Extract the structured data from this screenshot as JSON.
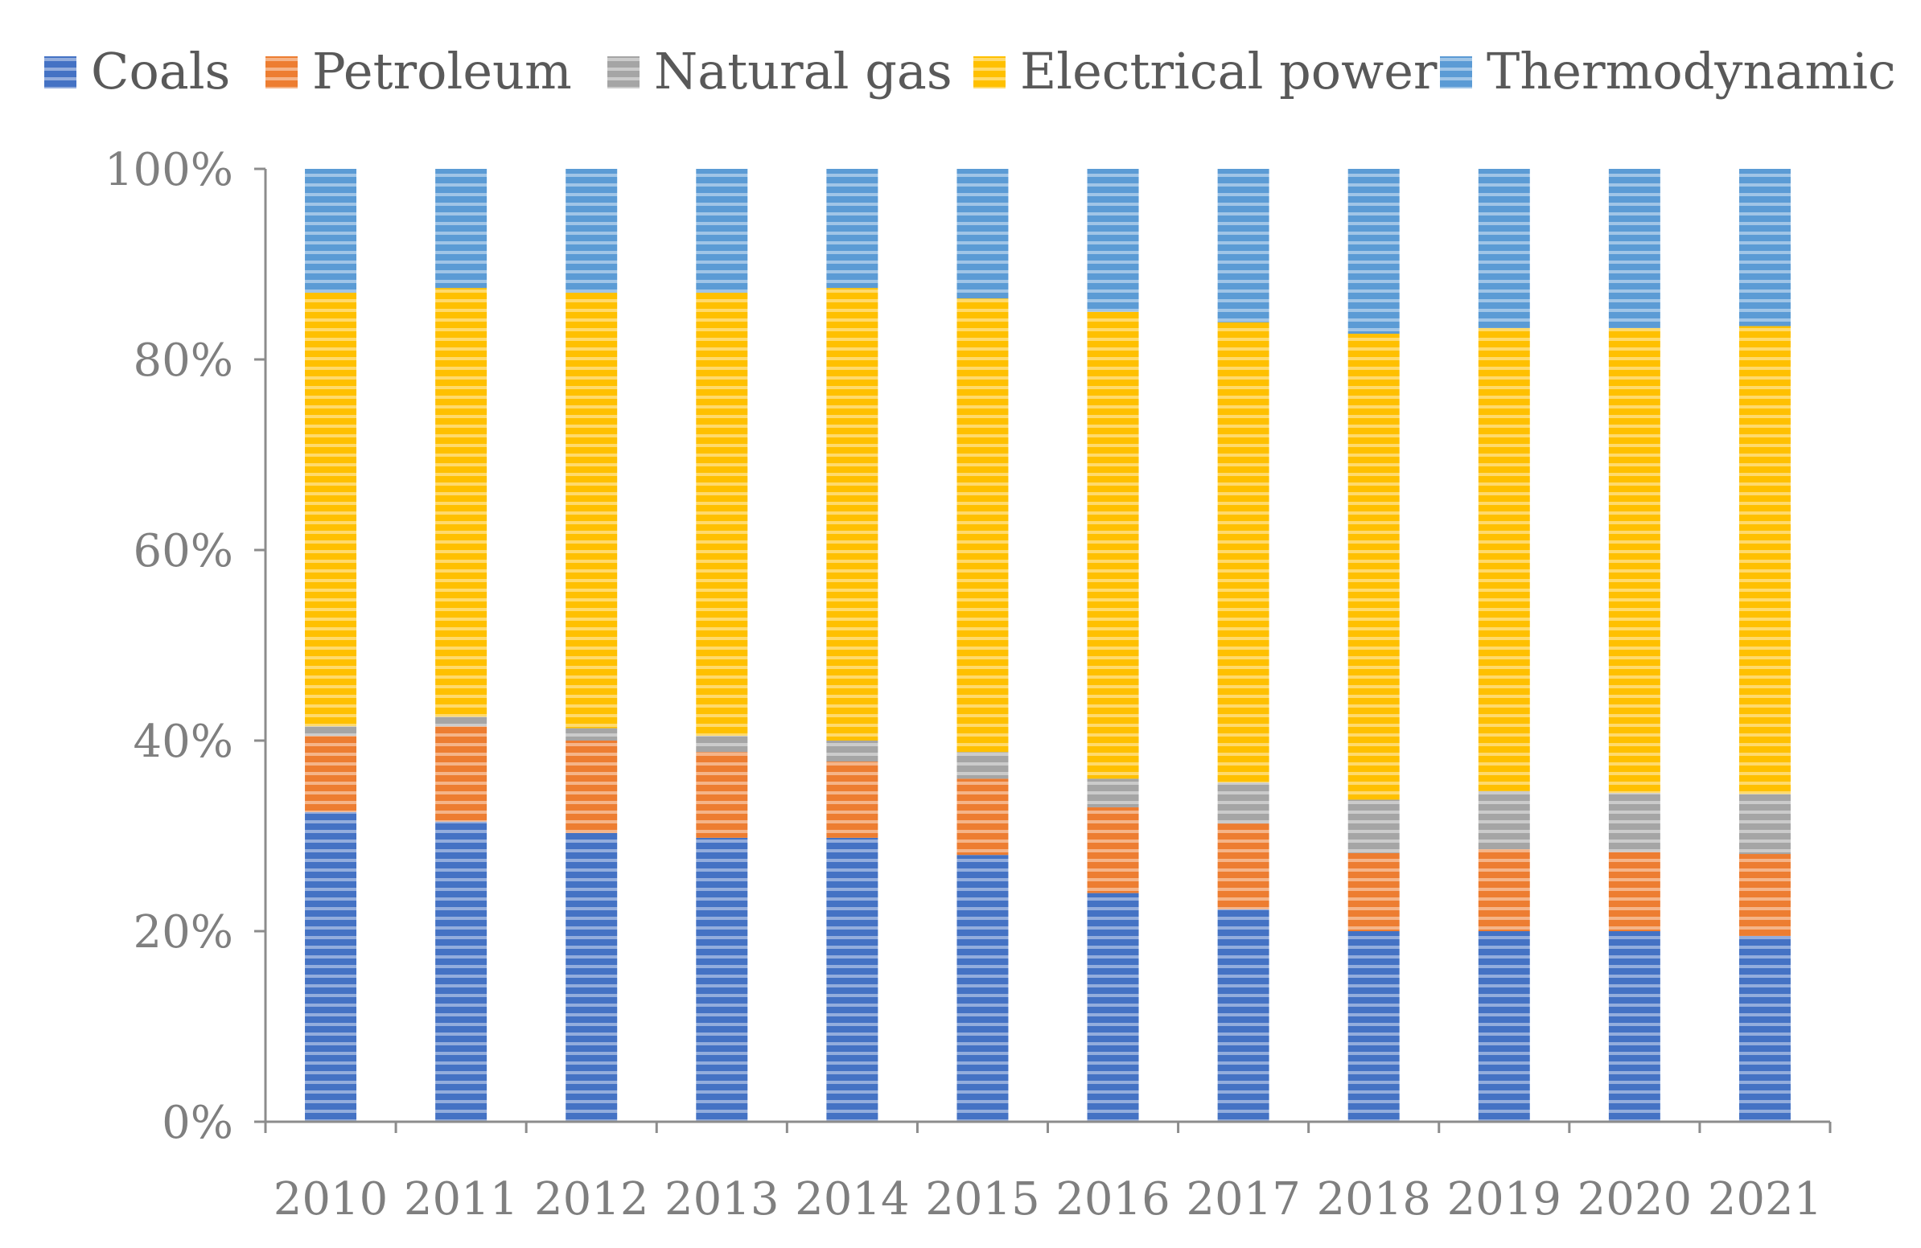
{
  "chart_data": {
    "type": "bar",
    "stacked": true,
    "normalized": true,
    "title": "",
    "xlabel": "",
    "ylabel": "",
    "ylim": [
      0,
      100
    ],
    "y_ticks": [
      "0%",
      "20%",
      "40%",
      "60%",
      "80%",
      "100%"
    ],
    "y_tick_values": [
      0,
      20,
      40,
      60,
      80,
      100
    ],
    "legend_position": "top",
    "grid": false,
    "categories": [
      "2010",
      "2011",
      "2012",
      "2013",
      "2014",
      "2015",
      "2016",
      "2017",
      "2018",
      "2019",
      "2020",
      "2021"
    ],
    "series": [
      {
        "name": "Coals",
        "color": "#4472c4",
        "values": [
          32.5,
          31.5,
          30.3,
          29.8,
          29.8,
          28.0,
          24.0,
          22.3,
          20.0,
          20.0,
          20.0,
          19.5
        ]
      },
      {
        "name": "Petroleum",
        "color": "#ed7d31",
        "values": [
          8.0,
          10.0,
          9.7,
          9.0,
          8.0,
          8.0,
          9.0,
          9.0,
          8.2,
          8.6,
          8.3,
          8.6
        ]
      },
      {
        "name": "Natural gas",
        "color": "#a5a5a5",
        "values": [
          1.0,
          1.0,
          1.3,
          1.7,
          2.2,
          2.8,
          3.0,
          4.3,
          5.6,
          6.1,
          6.2,
          6.3
        ]
      },
      {
        "name": "Electrical power",
        "color": "#ffc000",
        "values": [
          45.5,
          45.0,
          45.7,
          46.5,
          47.5,
          47.6,
          49.0,
          48.3,
          48.9,
          48.6,
          48.8,
          49.1
        ]
      },
      {
        "name": "Thermodynamic",
        "color": "#5b9bd5",
        "values": [
          13.0,
          12.5,
          13.0,
          13.0,
          12.5,
          13.6,
          15.0,
          16.1,
          17.3,
          16.7,
          16.7,
          16.5
        ]
      }
    ]
  }
}
